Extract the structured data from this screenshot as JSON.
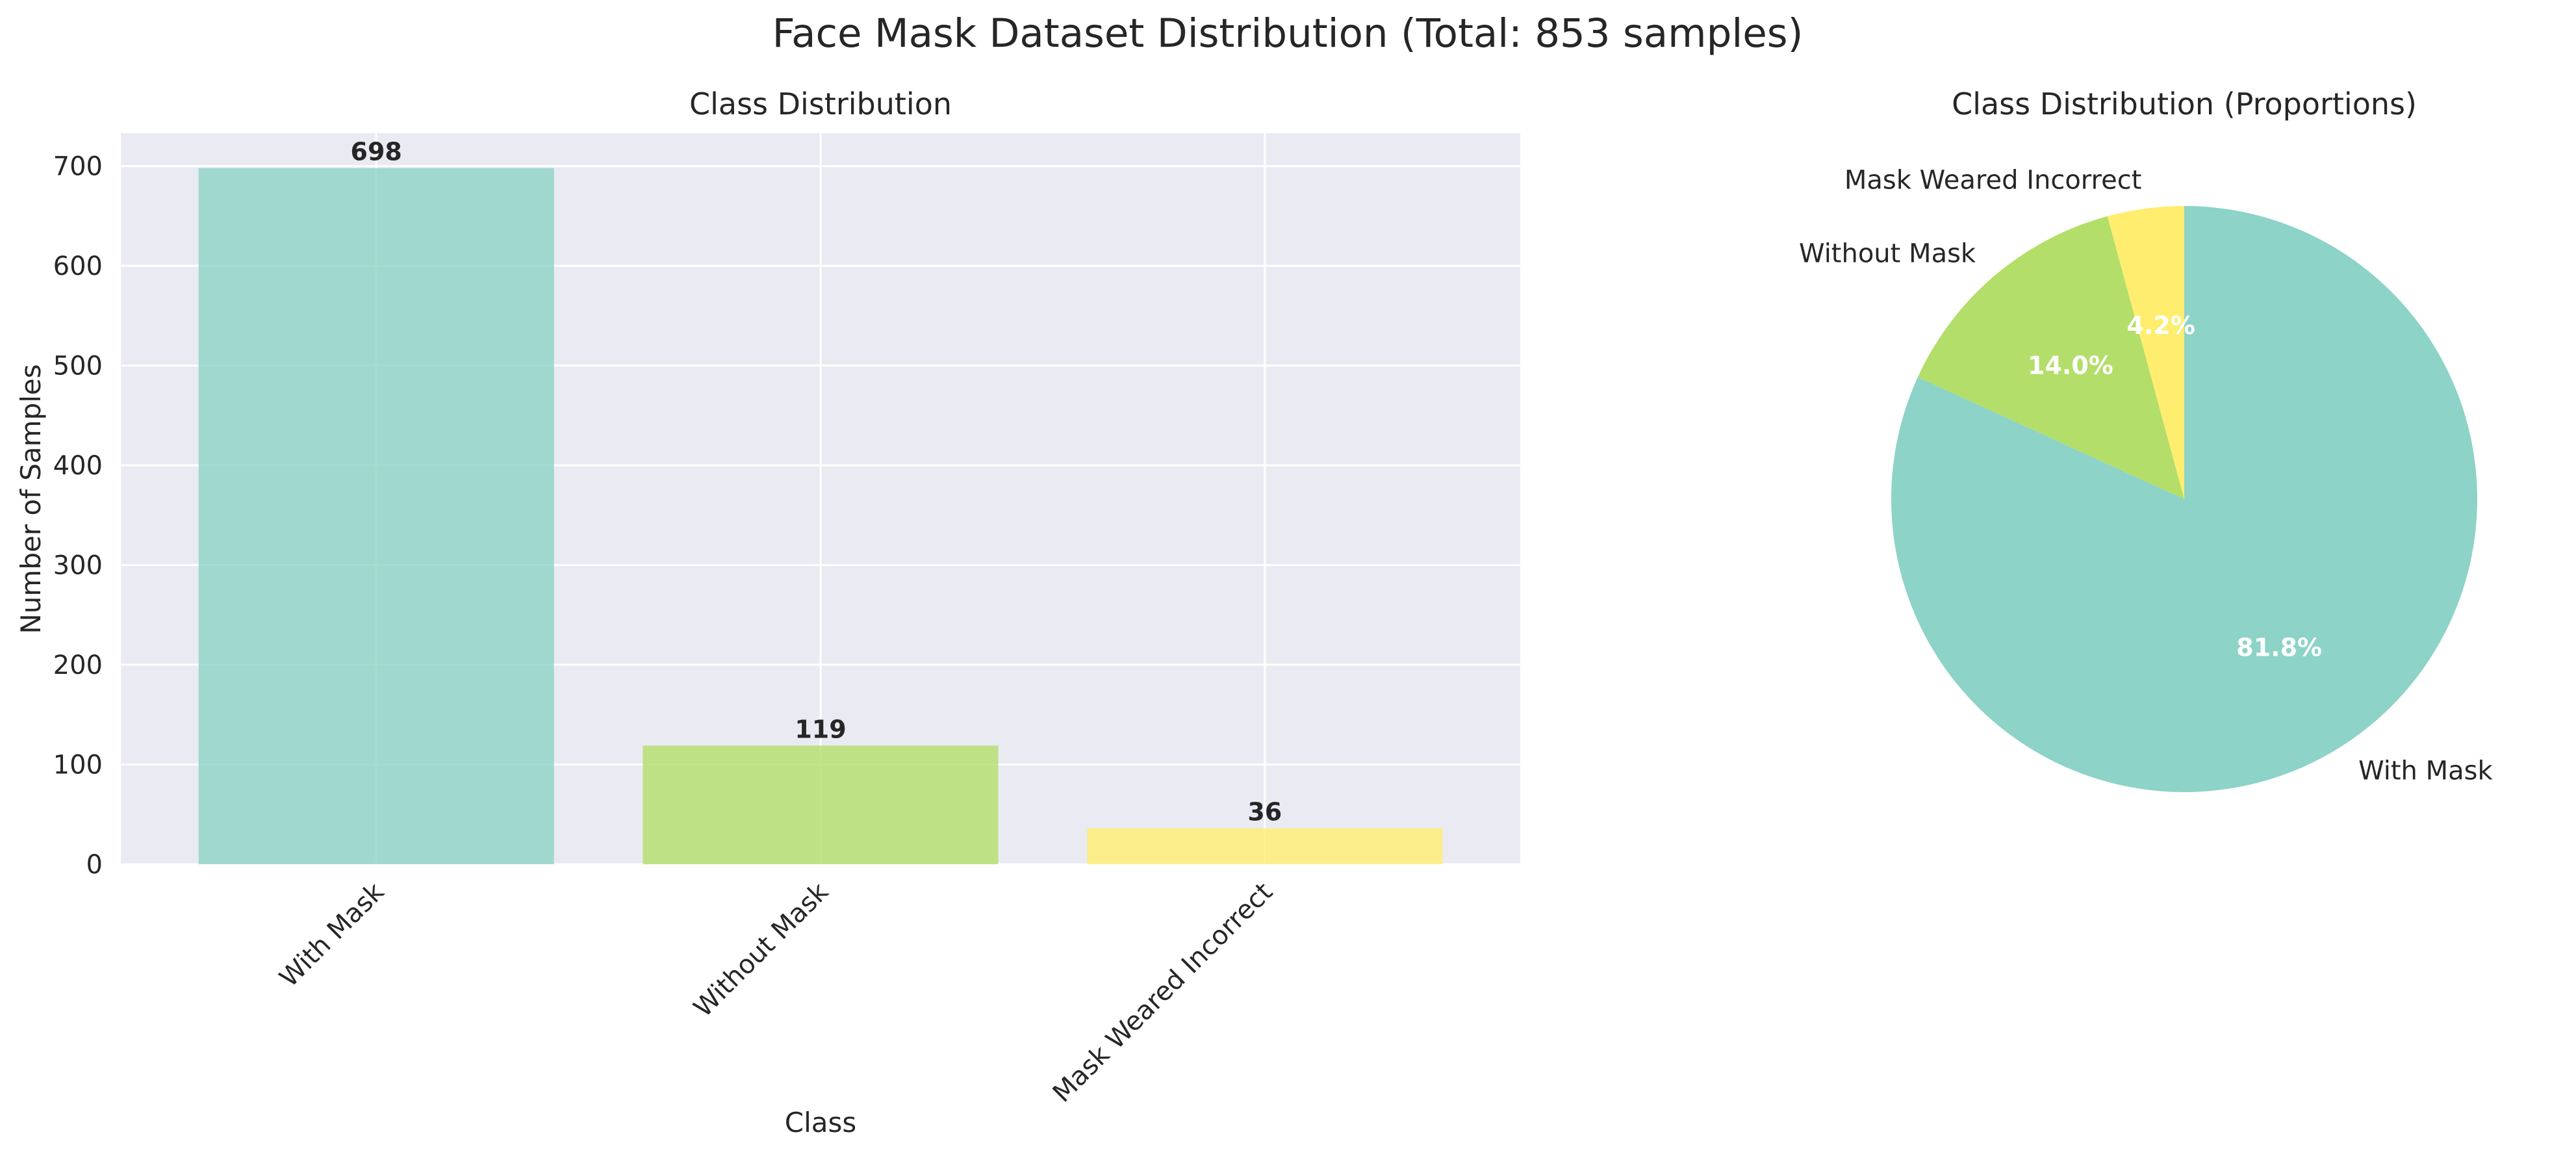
{
  "figure": {
    "suptitle": "Face Mask Dataset Distribution (Total: 853 samples)"
  },
  "chart_data": [
    {
      "type": "bar",
      "title": "Class Distribution",
      "xlabel": "Class",
      "ylabel": "Number of Samples",
      "categories": [
        "With Mask",
        "Without Mask",
        "Mask Weared Incorrect"
      ],
      "values": [
        698,
        119,
        36
      ],
      "value_labels": [
        "698",
        "119",
        "36"
      ],
      "colors": [
        "#8dd3c7",
        "#b3de69",
        "#ffed6f"
      ],
      "ylim": [
        0,
        733
      ],
      "yticks": [
        0,
        100,
        200,
        300,
        400,
        500,
        600,
        700
      ],
      "grid": true,
      "background": "#eaeaf2"
    },
    {
      "type": "pie",
      "title": "Class Distribution (Proportions)",
      "labels": [
        "With Mask",
        "Without Mask",
        "Mask Weared Incorrect"
      ],
      "values": [
        698,
        119,
        36
      ],
      "autopct_labels": [
        "81.8%",
        "14.0%",
        "4.2%"
      ],
      "colors": [
        "#8dd3c7",
        "#b3de69",
        "#ffed6f"
      ],
      "start_angle_deg": 90,
      "direction": "clockwise"
    }
  ]
}
